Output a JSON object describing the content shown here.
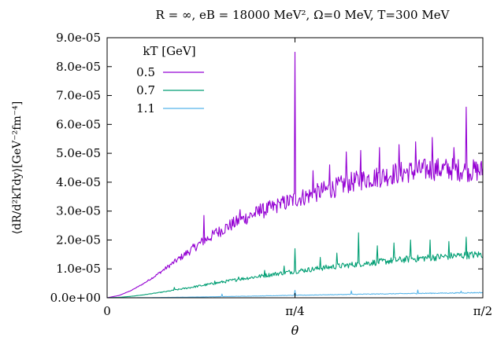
{
  "chart_data": {
    "type": "line",
    "title": "R = ∞, eB = 18000 MeV², Ω=0 MeV, T=300 MeV",
    "xlabel": "θ",
    "ylabel": "⟨dR/d²kTdy⟩[GeV⁻²fm⁻⁴]",
    "xlim": [
      0,
      1.5708
    ],
    "ylim": [
      0,
      9e-05
    ],
    "x_ticks": [
      {
        "value": 0,
        "label": "0"
      },
      {
        "value": 0.7854,
        "label": "π/4"
      },
      {
        "value": 1.5708,
        "label": "π/2"
      }
    ],
    "y_ticks": [
      {
        "value": 0,
        "label": "0.0e+00"
      },
      {
        "value": 1e-05,
        "label": "1.0e-05"
      },
      {
        "value": 2e-05,
        "label": "2.0e-05"
      },
      {
        "value": 3e-05,
        "label": "3.0e-05"
      },
      {
        "value": 4e-05,
        "label": "4.0e-05"
      },
      {
        "value": 5e-05,
        "label": "5.0e-05"
      },
      {
        "value": 6e-05,
        "label": "6.0e-05"
      },
      {
        "value": 7e-05,
        "label": "7.0e-05"
      },
      {
        "value": 8e-05,
        "label": "8.0e-05"
      },
      {
        "value": 9e-05,
        "label": "9.0e-05"
      }
    ],
    "grid": false,
    "legend": {
      "title": "kT [GeV]",
      "position": "top-left"
    },
    "series": [
      {
        "name": "0.5",
        "color": "#9400d3",
        "x": [
          0,
          0.05,
          0.1,
          0.15,
          0.2,
          0.25,
          0.3,
          0.35,
          0.4,
          0.45,
          0.5,
          0.55,
          0.6,
          0.65,
          0.7,
          0.75,
          0.8,
          0.85,
          0.9,
          0.95,
          1.0,
          1.05,
          1.1,
          1.15,
          1.2,
          1.25,
          1.3,
          1.35,
          1.4,
          1.45,
          1.5,
          1.5708
        ],
        "y": [
          0,
          8e-07,
          2.5e-06,
          4.8e-06,
          7.5e-06,
          1.05e-05,
          1.35e-05,
          1.65e-05,
          1.95e-05,
          2.2e-05,
          2.45e-05,
          2.65e-05,
          2.85e-05,
          3e-05,
          3.15e-05,
          3.3e-05,
          3.45e-05,
          3.55e-05,
          3.7e-05,
          3.8e-05,
          3.95e-05,
          4.05e-05,
          4.15e-05,
          4.2e-05,
          4.3e-05,
          4.35e-05,
          4.4e-05,
          4.45e-05,
          4.45e-05,
          4.45e-05,
          4.4e-05,
          4.4e-05
        ],
        "spikes": [
          [
            0.405,
            2.85e-05
          ],
          [
            0.455,
            2.4e-05
          ],
          [
            0.555,
            3.05e-05
          ],
          [
            0.64,
            3.25e-05
          ],
          [
            0.72,
            3.3e-05
          ],
          [
            0.7854,
            8.5e-05
          ],
          [
            0.86,
            4.4e-05
          ],
          [
            0.93,
            4.6e-05
          ],
          [
            1.0,
            5.05e-05
          ],
          [
            1.06,
            5.1e-05
          ],
          [
            1.14,
            5.2e-05
          ],
          [
            1.22,
            5.3e-05
          ],
          [
            1.29,
            5.4e-05
          ],
          [
            1.36,
            5.55e-05
          ],
          [
            1.45,
            5.2e-05
          ],
          [
            1.5,
            6.6e-05
          ]
        ]
      },
      {
        "name": "0.7",
        "color": "#009e73",
        "x": [
          0,
          0.05,
          0.1,
          0.15,
          0.2,
          0.25,
          0.3,
          0.35,
          0.4,
          0.45,
          0.5,
          0.55,
          0.6,
          0.65,
          0.7,
          0.75,
          0.8,
          0.85,
          0.9,
          0.95,
          1.0,
          1.05,
          1.1,
          1.15,
          1.2,
          1.25,
          1.3,
          1.35,
          1.4,
          1.45,
          1.5,
          1.5708
        ],
        "y": [
          0,
          1.5e-07,
          5e-07,
          1e-06,
          1.6e-06,
          2.2e-06,
          2.9e-06,
          3.6e-06,
          4.3e-06,
          5e-06,
          5.7e-06,
          6.4e-06,
          7e-06,
          7.6e-06,
          8.2e-06,
          8.8e-06,
          9.3e-06,
          9.8e-06,
          1.03e-05,
          1.08e-05,
          1.12e-05,
          1.17e-05,
          1.21e-05,
          1.25e-05,
          1.29e-05,
          1.33e-05,
          1.36e-05,
          1.39e-05,
          1.42e-05,
          1.45e-05,
          1.47e-05,
          1.5e-05
        ],
        "spikes": [
          [
            0.28,
            3.6e-06
          ],
          [
            0.45,
            5.8e-06
          ],
          [
            0.55,
            7.2e-06
          ],
          [
            0.66,
            9.5e-06
          ],
          [
            0.74,
            1.1e-05
          ],
          [
            0.7854,
            1.7e-05
          ],
          [
            0.89,
            1.4e-05
          ],
          [
            0.96,
            1.55e-05
          ],
          [
            1.05,
            2.25e-05
          ],
          [
            1.13,
            1.8e-05
          ],
          [
            1.2,
            1.9e-05
          ],
          [
            1.27,
            2e-05
          ],
          [
            1.35,
            2e-05
          ],
          [
            1.43,
            1.95e-05
          ],
          [
            1.5,
            2.1e-05
          ]
        ]
      },
      {
        "name": "1.1",
        "color": "#56b4e9",
        "x": [
          0,
          0.1,
          0.2,
          0.3,
          0.4,
          0.5,
          0.6,
          0.7,
          0.8,
          0.9,
          1.0,
          1.1,
          1.2,
          1.3,
          1.4,
          1.5,
          1.5708
        ],
        "y": [
          0,
          2e-08,
          8e-08,
          1.8e-07,
          3e-07,
          4.3e-07,
          5.8e-07,
          7.3e-07,
          8.8e-07,
          1.02e-06,
          1.15e-06,
          1.28e-06,
          1.4e-06,
          1.52e-06,
          1.62e-06,
          1.72e-06,
          1.8e-06
        ],
        "spikes": [
          [
            0.48,
            1.3e-06
          ],
          [
            0.7854,
            2.6e-06
          ],
          [
            1.02,
            2.4e-06
          ],
          [
            1.3,
            2.7e-06
          ],
          [
            1.48,
            2.3e-06
          ]
        ]
      }
    ]
  }
}
